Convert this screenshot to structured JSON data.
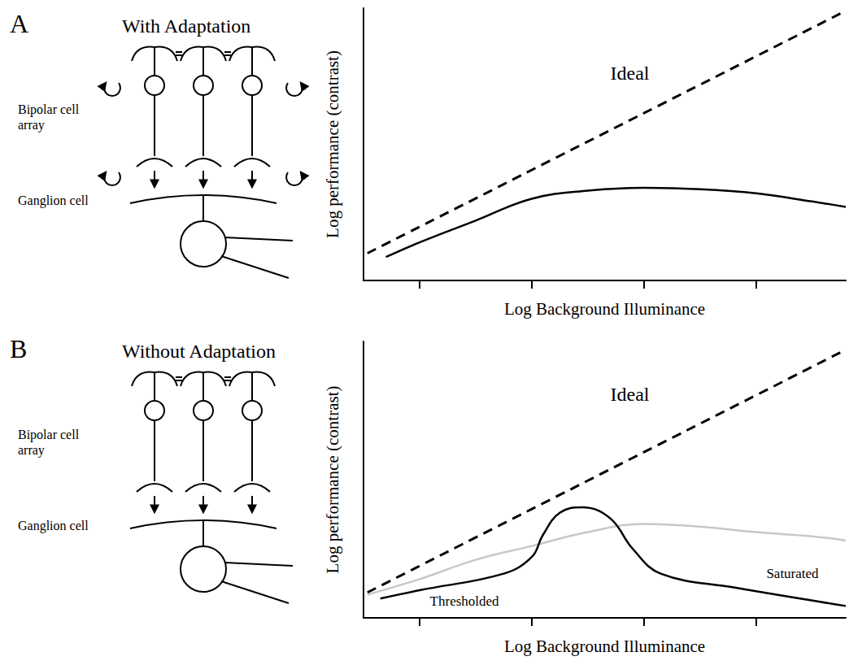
{
  "chart_data": [
    {
      "panel": "A",
      "type": "line",
      "diagram": {
        "title": "With Adaptation",
        "bipolar_label": "Bipolar cell array",
        "ganglion_label": "Ganglion cell",
        "bipolar_cells": 3,
        "feedback_arrows": 4
      },
      "x_label": "Log Background Illuminance",
      "y_label": "Log performance (contrast)",
      "xlim": [
        0,
        8.6
      ],
      "xticks": [
        1,
        3,
        5,
        7
      ],
      "ylim": [
        0,
        10
      ],
      "yticks": [],
      "tick_labels": false,
      "grid": false,
      "series": [
        {
          "name": "Ideal",
          "color": "#000000",
          "line_style": "dashed",
          "x": [
            0.07,
            8.6
          ],
          "values": [
            1.0,
            9.9
          ]
        },
        {
          "color": "#000000",
          "line_style": "solid",
          "x": [
            0.4,
            1.0,
            2.0,
            3.0,
            4.0,
            5.0,
            6.0,
            7.0,
            8.0,
            8.6
          ],
          "values": [
            0.86,
            1.4,
            2.2,
            3.0,
            3.3,
            3.4,
            3.35,
            3.2,
            2.9,
            2.7
          ]
        }
      ],
      "annotations": [
        {
          "text": "Ideal",
          "x": 4.75,
          "y": 7.6
        }
      ]
    },
    {
      "panel": "B",
      "type": "line",
      "diagram": {
        "title": "Without Adaptation",
        "bipolar_label": "Bipolar cell array",
        "ganglion_label": "Ganglion cell",
        "bipolar_cells": 3,
        "feedback_arrows": 0
      },
      "x_label": "Log Background Illuminance",
      "y_label": "Log performance (contrast)",
      "xlim": [
        0,
        8.6
      ],
      "xticks": [
        1,
        3,
        5,
        7
      ],
      "ylim": [
        0,
        10
      ],
      "yticks": [],
      "tick_labels": false,
      "grid": false,
      "series": [
        {
          "name": "Ideal",
          "color": "#000000",
          "line_style": "dashed",
          "x": [
            0.07,
            8.6
          ],
          "values": [
            0.92,
            9.7
          ]
        },
        {
          "color": "#c8c8c8",
          "line_style": "solid",
          "x": [
            0.07,
            1.0,
            2.0,
            3.0,
            4.0,
            5.0,
            6.0,
            7.0,
            8.0,
            8.6
          ],
          "values": [
            0.84,
            1.4,
            2.1,
            2.6,
            3.1,
            3.4,
            3.3,
            3.1,
            2.95,
            2.8
          ]
        },
        {
          "color": "#000000",
          "line_style": "solid",
          "x": [
            0.3,
            1.0,
            2.5,
            3.0,
            3.2,
            3.5,
            3.9,
            4.4,
            4.8,
            5.3,
            6.6,
            8.6
          ],
          "values": [
            0.7,
            1.0,
            1.6,
            2.2,
            3.0,
            3.8,
            4.0,
            3.6,
            2.5,
            1.6,
            1.1,
            0.43
          ]
        }
      ],
      "annotations": [
        {
          "text": "Ideal",
          "x": 4.75,
          "y": 8.1
        },
        {
          "text": "Thresholded",
          "x": 1.8,
          "y": 0.6
        },
        {
          "text": "Saturated",
          "x": 7.65,
          "y": 1.6
        }
      ]
    }
  ]
}
